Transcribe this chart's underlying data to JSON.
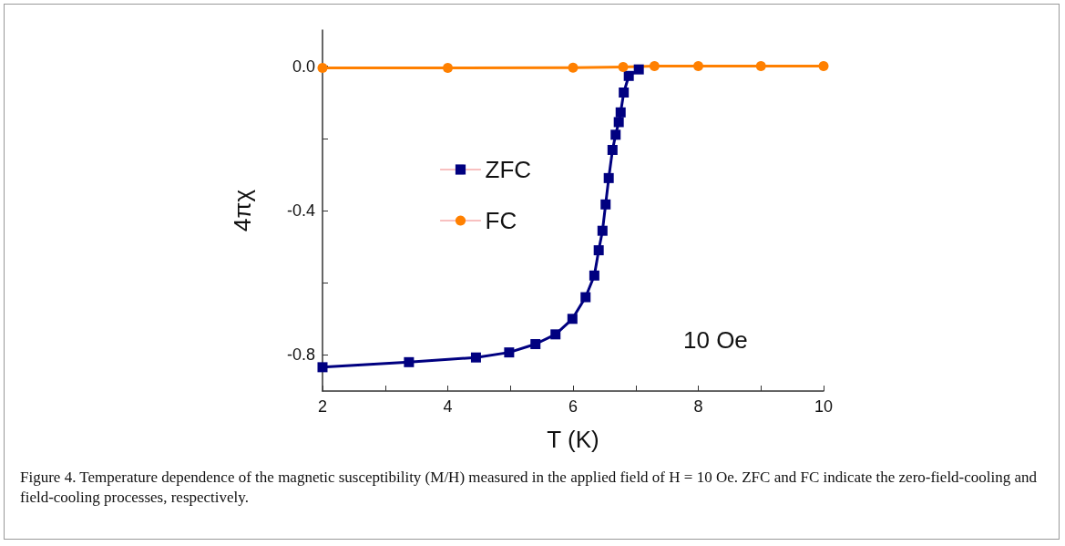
{
  "chart_data": {
    "type": "line",
    "xlabel": "T (K)",
    "ylabel": "4πχ",
    "xlim": [
      2,
      10
    ],
    "ylim": [
      -0.9,
      0.1
    ],
    "xticks": [
      2,
      {
        "value": 3,
        "label": null
      },
      4,
      {
        "value": 5,
        "label": null
      },
      6,
      {
        "value": 7,
        "label": null
      },
      8,
      {
        "value": 9,
        "label": null
      },
      10
    ],
    "yticks": [
      {
        "value": -0.8,
        "label": "-0.8"
      },
      {
        "value": -0.6,
        "label": null
      },
      {
        "value": -0.4,
        "label": "-0.4"
      },
      {
        "value": -0.2,
        "label": null
      },
      {
        "value": 0,
        "label": "0.0"
      }
    ],
    "grid": false,
    "legend": "left",
    "series": [
      {
        "name": "ZFC",
        "color": "#000080",
        "marker": "square",
        "x": [
          2,
          3.38,
          4.45,
          4.98,
          5.4,
          5.72,
          5.99,
          6.2,
          6.34,
          6.41,
          6.47,
          6.52,
          6.57,
          6.63,
          6.68,
          6.73,
          6.76,
          6.81,
          6.89,
          7.05
        ],
        "values": [
          -0.834,
          -0.82,
          -0.807,
          -0.793,
          -0.77,
          -0.743,
          -0.7,
          -0.64,
          -0.58,
          -0.51,
          -0.456,
          -0.383,
          -0.31,
          -0.232,
          -0.19,
          -0.155,
          -0.128,
          -0.073,
          -0.027,
          -0.009
        ]
      },
      {
        "name": "FC",
        "color": "#ff8000",
        "marker": "circle",
        "x": [
          2,
          4,
          6,
          6.8,
          7.3,
          8,
          9,
          10
        ],
        "values": [
          -0.005,
          -0.005,
          -0.004,
          -0.002,
          0,
          0,
          0,
          0
        ]
      }
    ],
    "annotations": [
      "10 Oe",
      "Figure 4. Temperature dependence of the magnetic susceptibility (M/H) measured in the applied field of H = 10 Oe. ZFC and FC indicate the zero-field-cooling and field-cooling processes, respectively."
    ]
  }
}
